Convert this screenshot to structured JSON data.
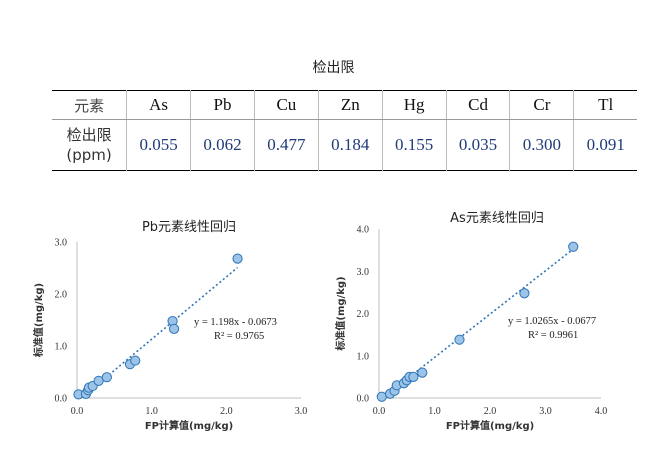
{
  "page_title": "检出限",
  "table": {
    "header_label": "元素",
    "elements": [
      "As",
      "Pb",
      "Cu",
      "Zn",
      "Hg",
      "Cd",
      "Cr",
      "Tl"
    ],
    "row_label_line1": "检出限",
    "row_label_line2": "(ppm)",
    "values": [
      "0.055",
      "0.062",
      "0.477",
      "0.184",
      "0.155",
      "0.035",
      "0.300",
      "0.091"
    ]
  },
  "chart_data": [
    {
      "type": "scatter",
      "title": "Pb元素线性回归",
      "xlabel": "FP计算值(mg/kg)",
      "ylabel": "标准值(mg/kg)",
      "xlim": [
        0,
        3
      ],
      "ylim": [
        0,
        3
      ],
      "xticks": [
        "0.0",
        "1.0",
        "2.0",
        "3.0"
      ],
      "yticks": [
        "0.0",
        "1.0",
        "2.0",
        "3.0"
      ],
      "points": [
        [
          0.02,
          0.07
        ],
        [
          0.12,
          0.08
        ],
        [
          0.15,
          0.15
        ],
        [
          0.16,
          0.2
        ],
        [
          0.21,
          0.23
        ],
        [
          0.29,
          0.33
        ],
        [
          0.4,
          0.4
        ],
        [
          0.71,
          0.65
        ],
        [
          0.78,
          0.72
        ],
        [
          1.28,
          1.48
        ],
        [
          1.3,
          1.33
        ],
        [
          2.15,
          2.68
        ]
      ],
      "trendline": {
        "slope": 1.198,
        "intercept": -0.0673,
        "x_range": [
          0.15,
          2.15
        ]
      },
      "equation": "y = 1.198x - 0.0673",
      "r2": "R² = 0.9765",
      "marker_color": "#9cc3e8",
      "edge_color": "#2f75b5",
      "line_color": "#2f75b5"
    },
    {
      "type": "scatter",
      "title": "As元素线性回归",
      "xlabel": "FP计算值(mg/kg)",
      "ylabel": "标准值(mg/kg)",
      "xlim": [
        0,
        4
      ],
      "ylim": [
        0,
        4
      ],
      "xticks": [
        "0.0",
        "1.0",
        "2.0",
        "3.0",
        "4.0"
      ],
      "yticks": [
        "0.0",
        "1.0",
        "2.0",
        "3.0",
        "4.0"
      ],
      "points": [
        [
          0.05,
          0.03
        ],
        [
          0.2,
          0.1
        ],
        [
          0.28,
          0.17
        ],
        [
          0.32,
          0.3
        ],
        [
          0.45,
          0.35
        ],
        [
          0.5,
          0.42
        ],
        [
          0.55,
          0.5
        ],
        [
          0.62,
          0.5
        ],
        [
          0.78,
          0.6
        ],
        [
          1.45,
          1.38
        ],
        [
          2.62,
          2.48
        ],
        [
          3.5,
          3.58
        ]
      ],
      "trendline": {
        "slope": 1.0265,
        "intercept": -0.0677,
        "x_range": [
          0.1,
          3.5
        ]
      },
      "equation": "y = 1.0265x - 0.0677",
      "r2": "R² = 0.9961",
      "marker_color": "#9cc3e8",
      "edge_color": "#2f75b5",
      "line_color": "#2f75b5"
    }
  ]
}
